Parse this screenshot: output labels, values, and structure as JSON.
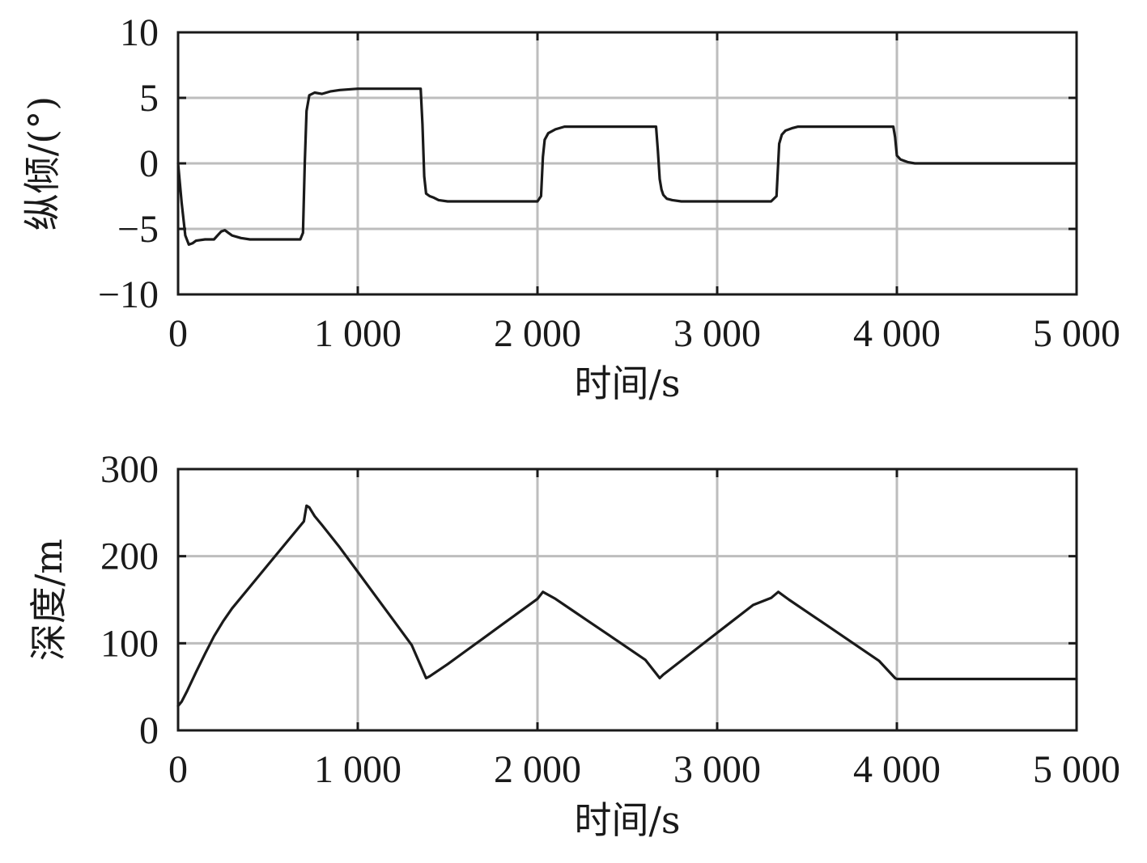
{
  "chart_data": [
    {
      "type": "line",
      "title": "",
      "xlabel": "时间/s",
      "ylabel": "纵倾/(°)",
      "xlim": [
        0,
        5000
      ],
      "ylim": [
        -10,
        10
      ],
      "x_ticks": [
        0,
        1000,
        2000,
        3000,
        4000,
        5000
      ],
      "x_tick_labels": [
        "0",
        "1 000",
        "2 000",
        "3 000",
        "4 000",
        "5 000"
      ],
      "y_ticks": [
        10,
        5,
        0,
        -5,
        -10
      ],
      "y_tick_labels": [
        "10",
        "5",
        "0",
        "−5",
        "−10"
      ],
      "grid": true,
      "series": [
        {
          "x": [
            0,
            20,
            40,
            60,
            80,
            100,
            150,
            200,
            220,
            240,
            260,
            280,
            300,
            350,
            400,
            500,
            600,
            680,
            695,
            705,
            715,
            730,
            760,
            800,
            850,
            900,
            1000,
            1100,
            1200,
            1300,
            1350,
            1360,
            1370,
            1380,
            1400,
            1420,
            1450,
            1500,
            1600,
            1700,
            1800,
            1900,
            2000,
            2020,
            2030,
            2040,
            2060,
            2100,
            2150,
            2200,
            2300,
            2400,
            2500,
            2600,
            2660,
            2670,
            2680,
            2690,
            2700,
            2720,
            2750,
            2800,
            2900,
            3000,
            3100,
            3200,
            3300,
            3330,
            3345,
            3360,
            3380,
            3420,
            3450,
            3500,
            3600,
            3800,
            3980,
            3990,
            4000,
            4020,
            4060,
            4100,
            4200,
            4500,
            5000
          ],
          "values": [
            0,
            -3.0,
            -5.5,
            -6.2,
            -6.1,
            -5.9,
            -5.8,
            -5.8,
            -5.5,
            -5.2,
            -5.1,
            -5.3,
            -5.5,
            -5.7,
            -5.8,
            -5.8,
            -5.8,
            -5.8,
            -5.3,
            0,
            4.0,
            5.2,
            5.4,
            5.3,
            5.5,
            5.6,
            5.7,
            5.7,
            5.7,
            5.7,
            5.7,
            3.0,
            -1.0,
            -2.3,
            -2.5,
            -2.6,
            -2.8,
            -2.9,
            -2.9,
            -2.9,
            -2.9,
            -2.9,
            -2.9,
            -2.5,
            0.5,
            1.8,
            2.3,
            2.6,
            2.8,
            2.8,
            2.8,
            2.8,
            2.8,
            2.8,
            2.8,
            1.0,
            -1.2,
            -2.0,
            -2.4,
            -2.7,
            -2.8,
            -2.9,
            -2.9,
            -2.9,
            -2.9,
            -2.9,
            -2.9,
            -2.5,
            1.5,
            2.2,
            2.5,
            2.7,
            2.8,
            2.8,
            2.8,
            2.8,
            2.8,
            2.0,
            0.6,
            0.3,
            0.1,
            0,
            0,
            0,
            0
          ]
        }
      ]
    },
    {
      "type": "line",
      "title": "",
      "xlabel": "时间/s",
      "ylabel": "深度/m",
      "xlim": [
        0,
        5000
      ],
      "ylim": [
        0,
        300
      ],
      "x_ticks": [
        0,
        1000,
        2000,
        3000,
        4000,
        5000
      ],
      "x_tick_labels": [
        "0",
        "1 000",
        "2 000",
        "3 000",
        "4 000",
        "5 000"
      ],
      "y_ticks": [
        300,
        200,
        100,
        0
      ],
      "y_tick_labels": [
        "300",
        "200",
        "100",
        "0"
      ],
      "grid": true,
      "series": [
        {
          "x": [
            0,
            20,
            50,
            100,
            150,
            200,
            250,
            300,
            400,
            500,
            600,
            700,
            715,
            730,
            760,
            800,
            900,
            1000,
            1100,
            1200,
            1300,
            1380,
            1400,
            1500,
            1600,
            1700,
            1800,
            1900,
            2000,
            2030,
            2100,
            2200,
            2300,
            2400,
            2500,
            2600,
            2680,
            2700,
            2800,
            2900,
            3000,
            3100,
            3200,
            3300,
            3340,
            3400,
            3500,
            3600,
            3700,
            3800,
            3900,
            3990,
            4000,
            4100,
            4500,
            5000
          ],
          "values": [
            28,
            33,
            45,
            67,
            88,
            108,
            125,
            140,
            165,
            190,
            215,
            240,
            258,
            256,
            246,
            236,
            210,
            182,
            154,
            126,
            98,
            60,
            62,
            76,
            91,
            106,
            121,
            136,
            151,
            159,
            151,
            137,
            123,
            109,
            95,
            81,
            60,
            64,
            80,
            96,
            112,
            128,
            144,
            152,
            159,
            150,
            136,
            122,
            108,
            94,
            80,
            60,
            59,
            59,
            59,
            59
          ]
        }
      ]
    }
  ]
}
